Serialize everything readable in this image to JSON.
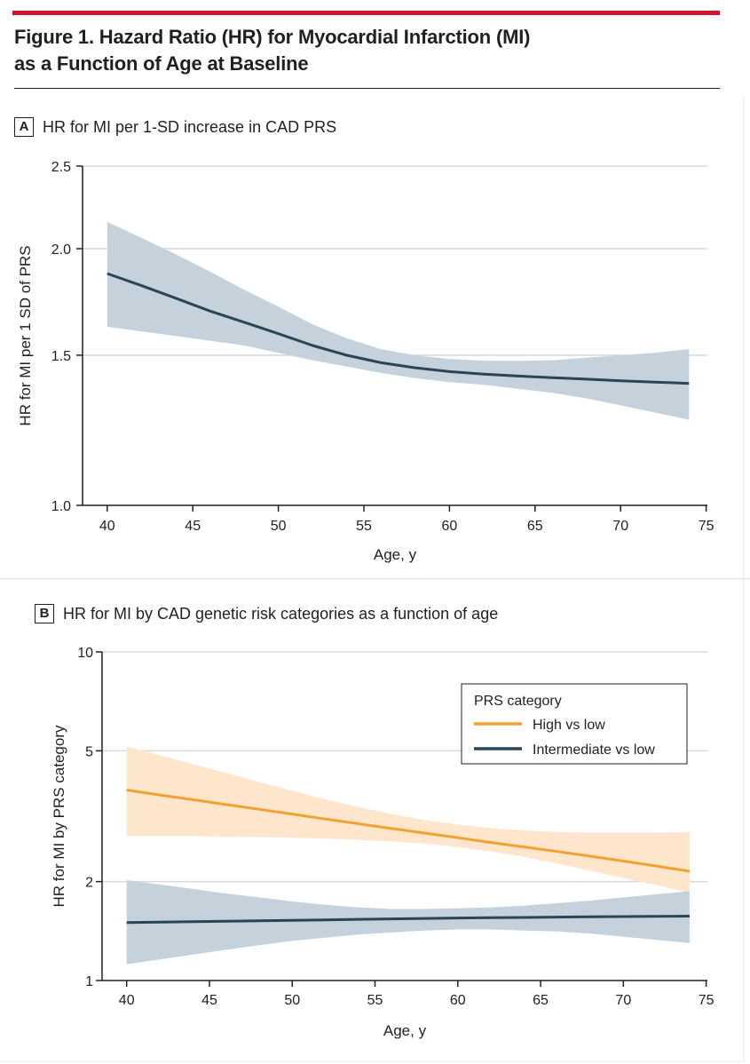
{
  "figure": {
    "title_line1": "Figure 1. Hazard Ratio (HR) for Myocardial Infarction (MI)",
    "title_line2": "as a Function of Age at Baseline"
  },
  "colors": {
    "accent_bar": "#d0142c",
    "navy_line": "#2a4553",
    "navy_band": "#c6d2db",
    "orange_line": "#f2a232",
    "orange_band": "#fde6cc",
    "grid": "#d9d9d9"
  },
  "chart_data": [
    {
      "panel_label": "A",
      "title": "HR for MI per 1-SD increase in CAD PRS",
      "type": "line",
      "xlabel": "Age, y",
      "ylabel": "HR for MI per 1 SD of PRS",
      "xlim": [
        38.5,
        75
      ],
      "ylim": [
        1.0,
        2.5
      ],
      "y_scale": "log",
      "x_ticks": [
        "40",
        "45",
        "50",
        "55",
        "60",
        "65",
        "70",
        "75"
      ],
      "y_ticks": [
        "1.0",
        "1.5",
        "2.0",
        "2.5"
      ],
      "grid": "horizontal",
      "series": [
        {
          "color": "#2a4553",
          "band_color": "#c6d2db",
          "x": [
            40,
            42,
            44,
            46,
            48,
            50,
            52,
            54,
            56,
            58,
            60,
            62,
            64,
            66,
            68,
            70,
            72,
            74
          ],
          "y": [
            1.87,
            1.81,
            1.75,
            1.69,
            1.64,
            1.59,
            1.54,
            1.5,
            1.47,
            1.45,
            1.435,
            1.425,
            1.418,
            1.412,
            1.406,
            1.4,
            1.395,
            1.39
          ],
          "lower": [
            1.62,
            1.6,
            1.58,
            1.56,
            1.54,
            1.51,
            1.48,
            1.455,
            1.43,
            1.41,
            1.395,
            1.385,
            1.37,
            1.355,
            1.335,
            1.31,
            1.285,
            1.26
          ],
          "upper": [
            2.15,
            2.06,
            1.97,
            1.88,
            1.79,
            1.71,
            1.63,
            1.57,
            1.525,
            1.5,
            1.485,
            1.478,
            1.477,
            1.48,
            1.49,
            1.5,
            1.51,
            1.525
          ]
        }
      ]
    },
    {
      "panel_label": "B",
      "title": "HR for MI by CAD genetic risk categories as a function of age",
      "type": "line",
      "xlabel": "Age, y",
      "ylabel": "HR for MI by PRS category",
      "xlim": [
        38.5,
        75
      ],
      "ylim": [
        1,
        10
      ],
      "y_scale": "log",
      "x_ticks": [
        "40",
        "45",
        "50",
        "55",
        "60",
        "65",
        "70",
        "75"
      ],
      "y_ticks": [
        "1",
        "2",
        "5",
        "10"
      ],
      "grid": "horizontal",
      "legend": {
        "title": "PRS category",
        "placement": "top-right"
      },
      "series": [
        {
          "name": "High vs low",
          "color": "#f2a232",
          "band_color": "#fde6cc",
          "x": [
            40,
            42,
            44,
            46,
            48,
            50,
            52,
            54,
            56,
            58,
            60,
            62,
            64,
            66,
            68,
            70,
            72,
            74
          ],
          "y": [
            3.8,
            3.67,
            3.55,
            3.43,
            3.32,
            3.21,
            3.1,
            3.0,
            2.9,
            2.81,
            2.72,
            2.63,
            2.55,
            2.47,
            2.39,
            2.31,
            2.23,
            2.15
          ],
          "lower": [
            2.75,
            2.75,
            2.75,
            2.74,
            2.73,
            2.72,
            2.7,
            2.68,
            2.65,
            2.61,
            2.55,
            2.47,
            2.38,
            2.27,
            2.16,
            2.05,
            1.95,
            1.85
          ],
          "upper": [
            5.15,
            4.85,
            4.55,
            4.28,
            4.02,
            3.78,
            3.56,
            3.37,
            3.21,
            3.08,
            2.98,
            2.91,
            2.86,
            2.83,
            2.82,
            2.82,
            2.82,
            2.83
          ]
        },
        {
          "name": "Intermediate vs low",
          "color": "#2a4553",
          "band_color": "#c6d2db",
          "x": [
            40,
            42,
            44,
            46,
            48,
            50,
            52,
            54,
            56,
            58,
            60,
            62,
            64,
            66,
            68,
            70,
            72,
            74
          ],
          "y": [
            1.5,
            1.505,
            1.51,
            1.515,
            1.52,
            1.525,
            1.53,
            1.535,
            1.54,
            1.545,
            1.55,
            1.553,
            1.556,
            1.559,
            1.562,
            1.565,
            1.568,
            1.57
          ],
          "lower": [
            1.12,
            1.16,
            1.2,
            1.24,
            1.28,
            1.32,
            1.35,
            1.38,
            1.4,
            1.42,
            1.43,
            1.43,
            1.42,
            1.41,
            1.39,
            1.36,
            1.33,
            1.3
          ],
          "upper": [
            2.02,
            1.96,
            1.9,
            1.84,
            1.79,
            1.74,
            1.7,
            1.67,
            1.65,
            1.65,
            1.66,
            1.67,
            1.69,
            1.72,
            1.75,
            1.79,
            1.83,
            1.87
          ]
        }
      ]
    }
  ]
}
